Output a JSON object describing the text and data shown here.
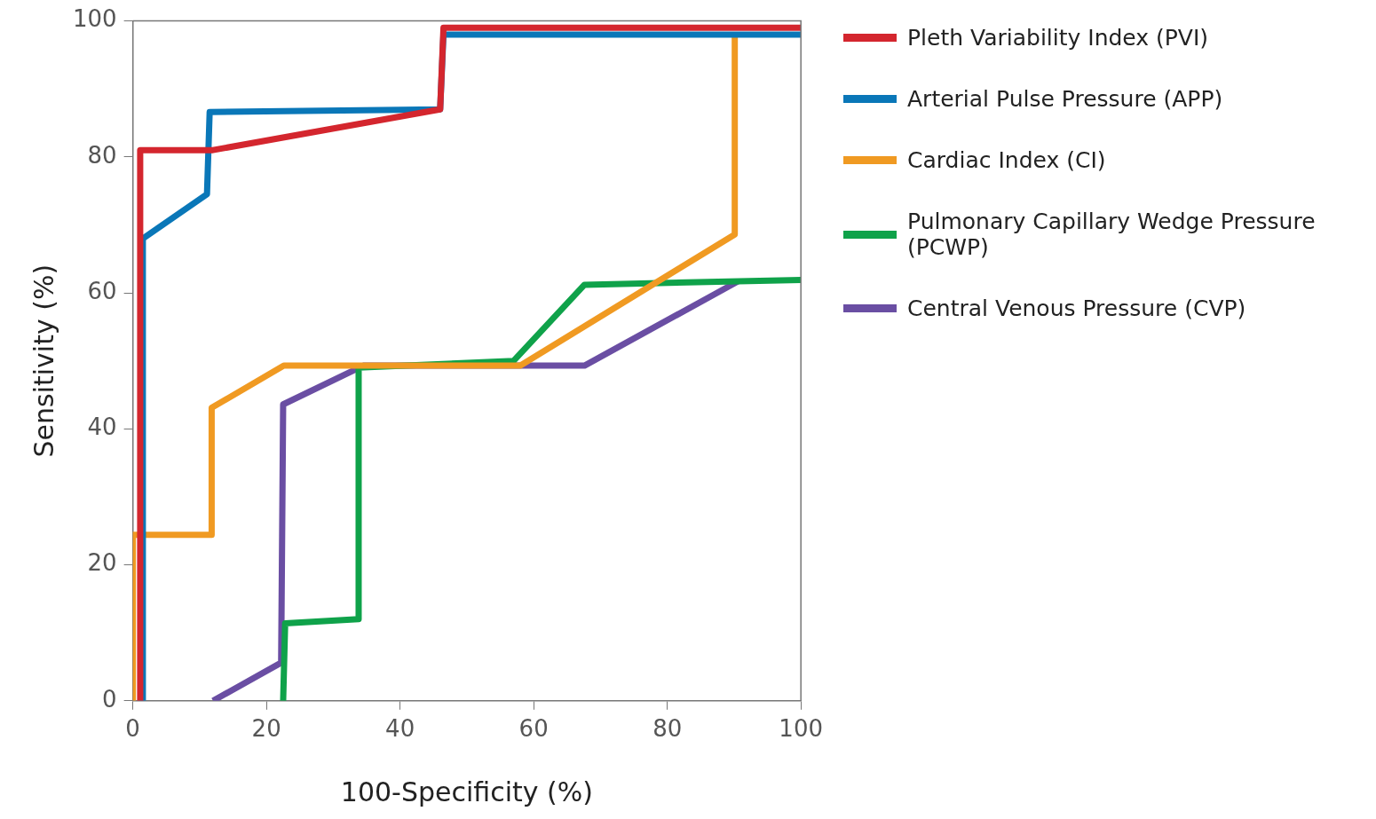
{
  "chart_data": {
    "type": "line",
    "xlabel": "100-Specificity (%)",
    "ylabel": "Sensitivity (%)",
    "xlim": [
      0,
      100
    ],
    "ylim": [
      0,
      100
    ],
    "xticks": [
      0,
      20,
      40,
      60,
      80,
      100
    ],
    "yticks": [
      0,
      20,
      40,
      60,
      80,
      100
    ],
    "grid": false,
    "legend": "right",
    "marker": "none",
    "line_style": "solid",
    "series": [
      {
        "name": "Pleth Variability Index (PVI)",
        "color": "#d4262e",
        "x": [
          1.1,
          1.1,
          12,
          46,
          46.5,
          100
        ],
        "values": [
          0,
          81,
          81,
          87,
          99,
          99
        ]
      },
      {
        "name": "Arterial Pulse Pressure (APP)",
        "color": "#0a77b8",
        "x": [
          1.5,
          1.5,
          11.1,
          11.5,
          46,
          46.5,
          100
        ],
        "values": [
          0,
          68,
          74.5,
          86.6,
          87,
          98,
          98
        ]
      },
      {
        "name": "Cardiac Index (CI)",
        "color": "#f09a22",
        "x": [
          0,
          0,
          11.8,
          11.8,
          22.6,
          35,
          58,
          90.1,
          90.1
        ],
        "values": [
          0,
          24.4,
          24.4,
          43.1,
          49.3,
          49.3,
          49.3,
          68.6,
          98
        ]
      },
      {
        "name": "Pulmonary Capillary Wedge Pressure (PCWP)",
        "color": "#0fa24a",
        "x": [
          22.5,
          22.8,
          33.8,
          33.8,
          57,
          67.6,
          100
        ],
        "values": [
          0,
          11.4,
          12,
          49,
          50,
          61.2,
          61.9
        ]
      },
      {
        "name": "Central Venous Pressure (CVP)",
        "color": "#6a4ea3",
        "x": [
          12,
          22.2,
          22.5,
          34.5,
          67.6,
          90.6
        ],
        "values": [
          0,
          5.6,
          43.6,
          49.3,
          49.3,
          61.7
        ]
      }
    ]
  }
}
